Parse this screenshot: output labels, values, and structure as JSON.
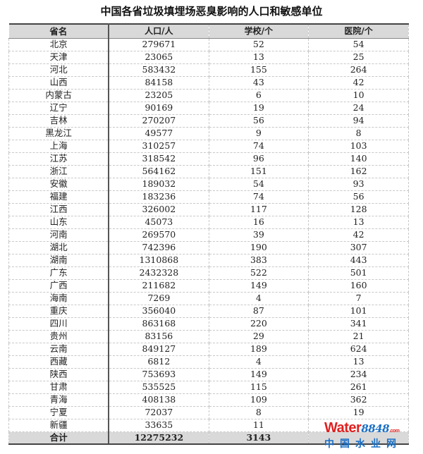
{
  "title": "中国各省垃圾填埋场恶臭影响的人口和敏感单位",
  "table": {
    "headers": [
      "省名",
      "人口/人",
      "学校/个",
      "医院/个"
    ],
    "rows": [
      [
        "北京",
        "279671",
        "52",
        "54"
      ],
      [
        "天津",
        "23065",
        "13",
        "25"
      ],
      [
        "河北",
        "583432",
        "155",
        "264"
      ],
      [
        "山西",
        "84158",
        "43",
        "42"
      ],
      [
        "内蒙古",
        "23205",
        "6",
        "10"
      ],
      [
        "辽宁",
        "90169",
        "19",
        "24"
      ],
      [
        "吉林",
        "270207",
        "56",
        "94"
      ],
      [
        "黑龙江",
        "49577",
        "9",
        "8"
      ],
      [
        "上海",
        "310257",
        "74",
        "103"
      ],
      [
        "江苏",
        "318542",
        "96",
        "140"
      ],
      [
        "浙江",
        "564162",
        "151",
        "162"
      ],
      [
        "安徽",
        "189032",
        "54",
        "93"
      ],
      [
        "福建",
        "183236",
        "74",
        "56"
      ],
      [
        "江西",
        "326002",
        "117",
        "128"
      ],
      [
        "山东",
        "45073",
        "16",
        "13"
      ],
      [
        "河南",
        "269570",
        "39",
        "42"
      ],
      [
        "湖北",
        "742396",
        "190",
        "307"
      ],
      [
        "湖南",
        "1310868",
        "383",
        "443"
      ],
      [
        "广东",
        "2432328",
        "522",
        "501"
      ],
      [
        "广西",
        "211682",
        "149",
        "160"
      ],
      [
        "海南",
        "7269",
        "4",
        "7"
      ],
      [
        "重庆",
        "356040",
        "87",
        "101"
      ],
      [
        "四川",
        "863168",
        "220",
        "341"
      ],
      [
        "贵州",
        "83156",
        "29",
        "21"
      ],
      [
        "云南",
        "849127",
        "189",
        "624"
      ],
      [
        "西藏",
        "6812",
        "4",
        "13"
      ],
      [
        "陕西",
        "753693",
        "149",
        "234"
      ],
      [
        "甘肃",
        "535525",
        "115",
        "261"
      ],
      [
        "青海",
        "408138",
        "109",
        "362"
      ],
      [
        "宁夏",
        "72037",
        "8",
        "19"
      ],
      [
        "新疆",
        "33635",
        "11",
        ""
      ]
    ],
    "total": [
      "合计",
      "12275232",
      "3143",
      ""
    ]
  },
  "watermark": {
    "en": "Water",
    "num": "8848",
    "dom": ".com",
    "cn": "中国水业网"
  }
}
